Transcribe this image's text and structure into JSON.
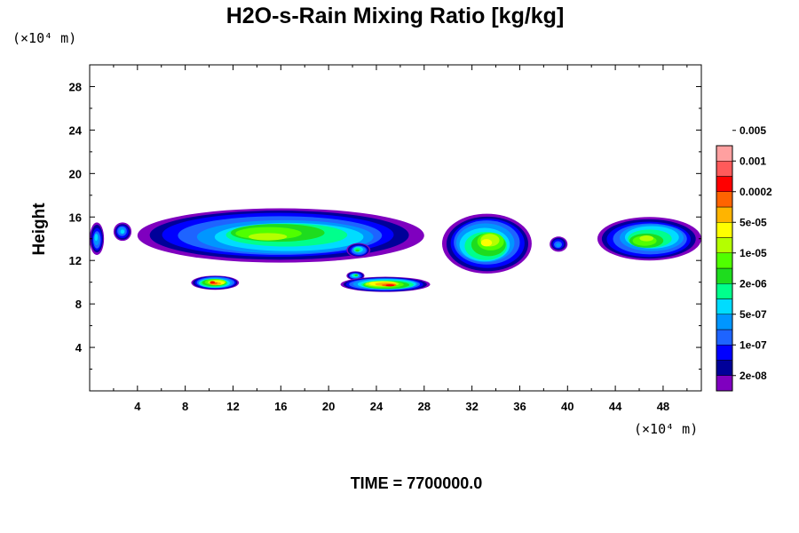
{
  "chart_data": {
    "type": "heatmap",
    "title": "H2O-s-Rain Mixing Ratio [kg/kg]",
    "ylabel": "Height",
    "x_unit": "(×10⁴ m)",
    "y_unit": "(×10⁴ m)",
    "time_label": "TIME = 7700000.0",
    "xlim": [
      0,
      51.2
    ],
    "ylim": [
      0,
      30
    ],
    "x_ticks": [
      4,
      8,
      12,
      16,
      20,
      24,
      28,
      32,
      36,
      40,
      44,
      48
    ],
    "x_tick_labels": [
      "4",
      "8",
      "12",
      "16",
      "20",
      "24",
      "28",
      "32",
      "36",
      "40",
      "44",
      "48"
    ],
    "y_ticks": [
      4,
      8,
      12,
      16,
      20,
      24,
      28
    ],
    "y_tick_labels": [
      "4",
      "8",
      "12",
      "16",
      "20",
      "24",
      "28"
    ],
    "legend": {
      "colors": [
        "#7f00bf",
        "#000099",
        "#0000ff",
        "#1e64ff",
        "#0096ff",
        "#00dcff",
        "#00ff8c",
        "#1edc1e",
        "#50ff00",
        "#b4ff00",
        "#ffff00",
        "#ffb400",
        "#ff6400",
        "#ff0000",
        "#ff5a5a",
        "#ffa0a0"
      ],
      "labels": [
        "2e-08",
        "1e-07",
        "5e-07",
        "2e-06",
        "1e-05",
        "5e-05",
        "0.0002",
        "0.001",
        "0.005"
      ]
    },
    "features": [
      {
        "x": [
          0,
          1.2
        ],
        "y": [
          12.5,
          15.5
        ],
        "max_level": 5
      },
      {
        "x": [
          2,
          3.5
        ],
        "y": [
          13.8,
          15.5
        ],
        "max_level": 5
      },
      {
        "x": [
          4,
          28
        ],
        "y": [
          11.8,
          16.8
        ],
        "max_level": 9
      },
      {
        "x": [
          21.5,
          23.5
        ],
        "y": [
          12.3,
          13.6
        ],
        "max_level": 7
      },
      {
        "x": [
          29.5,
          37
        ],
        "y": [
          10.8,
          16.3
        ],
        "max_level": 10
      },
      {
        "x": [
          38.5,
          40
        ],
        "y": [
          12.8,
          14.2
        ],
        "max_level": 4
      },
      {
        "x": [
          42.5,
          51.2
        ],
        "y": [
          12,
          16
        ],
        "max_level": 9
      },
      {
        "x": [
          8.5,
          12.5
        ],
        "y": [
          9.3,
          10.6
        ],
        "max_level": 13
      },
      {
        "x": [
          21.5,
          23
        ],
        "y": [
          10.2,
          11
        ],
        "max_level": 7
      },
      {
        "x": [
          21,
          28.5
        ],
        "y": [
          9.1,
          10.5
        ],
        "max_level": 13
      }
    ]
  }
}
